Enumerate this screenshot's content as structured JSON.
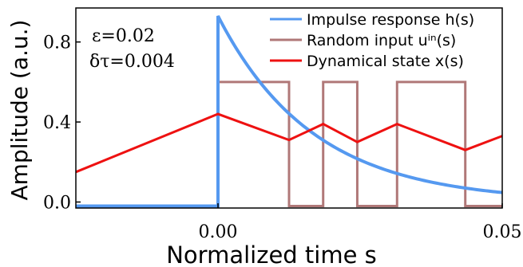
{
  "chart_data": {
    "type": "line",
    "title": "",
    "xlabel": "Normalized time s",
    "ylabel": "Amplitude (a.u.)",
    "xlim": [
      -0.025,
      0.05
    ],
    "ylim": [
      -0.03,
      0.97
    ],
    "x_ticks": [
      {
        "value": 0.0,
        "label": "0.00"
      },
      {
        "value": 0.05,
        "label": "0.05"
      }
    ],
    "y_ticks": [
      {
        "value": 0.0,
        "label": "0.0"
      },
      {
        "value": 0.4,
        "label": "0.4"
      },
      {
        "value": 0.8,
        "label": "0.8"
      }
    ],
    "annotations": [
      {
        "text": "ε=0.02"
      },
      {
        "text": "δτ=0.004"
      }
    ],
    "legend_position": "top-right",
    "grid": false,
    "series": [
      {
        "name": "Impulse response h(s)",
        "color": "#5599f0",
        "kind": "impulse",
        "pre_value": -0.02,
        "peak": 0.93,
        "decay_tau": 0.0168,
        "step_x": 0.0
      },
      {
        "name": "Random input uⁱⁿ(s)",
        "color": "#b07878",
        "kind": "step",
        "x": [
          -0.025,
          0.0,
          0.0,
          0.0125,
          0.0125,
          0.0185,
          0.0185,
          0.0245,
          0.0245,
          0.0315,
          0.0315,
          0.0435,
          0.0435,
          0.05
        ],
        "values": [
          -0.02,
          -0.02,
          0.6,
          0.6,
          -0.02,
          -0.02,
          0.6,
          0.6,
          -0.02,
          -0.02,
          0.6,
          0.6,
          -0.02,
          -0.02
        ]
      },
      {
        "name": "Dynamical state x(s)",
        "color": "#ee1111",
        "kind": "line",
        "x": [
          -0.025,
          0.0,
          0.0125,
          0.0185,
          0.0245,
          0.0315,
          0.0435,
          0.05
        ],
        "values": [
          0.15,
          0.44,
          0.31,
          0.39,
          0.3,
          0.39,
          0.26,
          0.33
        ]
      }
    ]
  }
}
